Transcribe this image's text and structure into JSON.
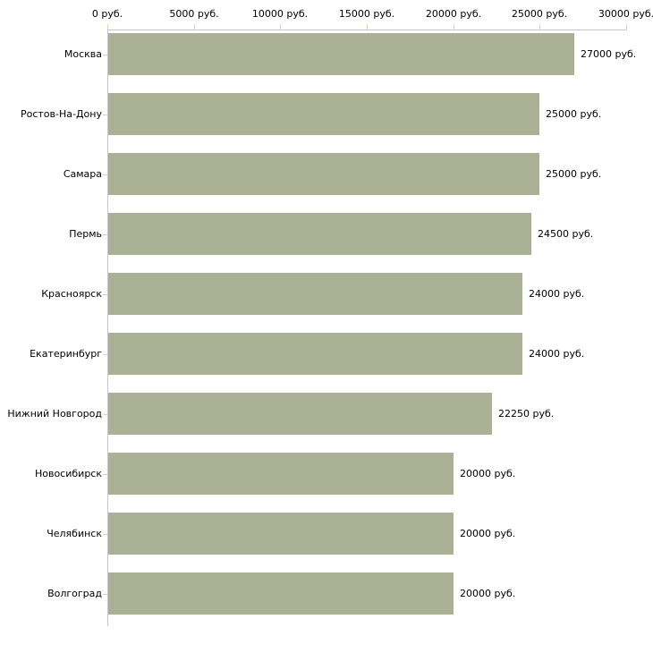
{
  "chart_data": {
    "type": "bar",
    "orientation": "horizontal",
    "title": "",
    "xlabel": "",
    "ylabel": "",
    "grid": false,
    "legend": "none",
    "categories": [
      "Москва",
      "Ростов-На-Дону",
      "Самара",
      "Пермь",
      "Красноярск",
      "Екатеринбург",
      "Нижний Новгород",
      "Новосибирск",
      "Челябинск",
      "Волгоград"
    ],
    "values": [
      27000,
      25000,
      25000,
      24500,
      24000,
      24000,
      22250,
      20000,
      20000,
      20000
    ],
    "value_labels": [
      "27000 руб.",
      "25000 руб.",
      "25000 руб.",
      "24500 руб.",
      "24000 руб.",
      "24000 руб.",
      "22250 руб.",
      "20000 руб.",
      "20000 руб.",
      "20000 руб."
    ],
    "x_axis": {
      "position": "top",
      "min": 0,
      "max": 30000,
      "tick_interval": 5000,
      "tick_labels": [
        "0 руб.",
        "5000 руб.",
        "10000 руб.",
        "15000 руб.",
        "20000 руб.",
        "25000 руб.",
        "30000 руб."
      ]
    },
    "colors": {
      "bar_fill": "#abb195",
      "axis_line": "#c6c6c6",
      "tick_mark": "#d6d6ad",
      "text": "#000000",
      "background": "#ffffff"
    }
  }
}
